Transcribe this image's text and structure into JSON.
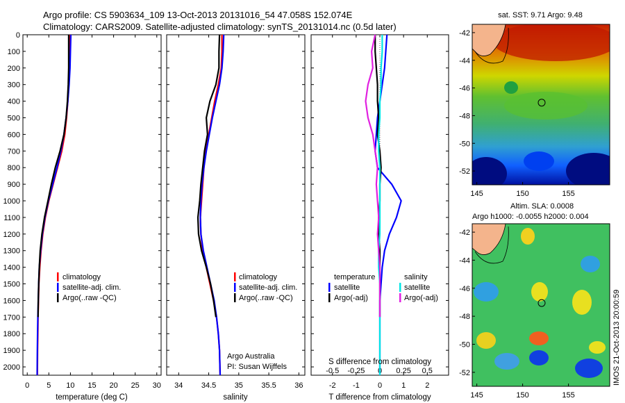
{
  "title": {
    "line1": "Argo profile: CS 5903634_109 13-Oct-2013 20131016_54 47.058S 152.074E",
    "line2": "Climatology: CARS2009. Satellite-adjusted climatology: synTS_20131014.nc (0.5d later)"
  },
  "colors": {
    "climatology": "#ff0000",
    "satellite": "#0000ff",
    "argo": "#000000",
    "salinity_sat": "#00e5e5",
    "salinity_argo": "#e020e0"
  },
  "chart_data": [
    {
      "type": "line",
      "panel": "temperature",
      "xlabel": "temperature (deg C)",
      "ylabel": "",
      "xlim": [
        -1,
        31
      ],
      "ylim": [
        0,
        2050
      ],
      "y_reversed": true,
      "xticks": [
        "0",
        "5",
        "10",
        "15",
        "20",
        "25",
        "30"
      ],
      "yticks": [
        "0",
        "100",
        "200",
        "300",
        "400",
        "500",
        "600",
        "700",
        "800",
        "900",
        "1000",
        "1100",
        "1200",
        "1300",
        "1400",
        "1500",
        "1600",
        "1700",
        "1800",
        "1900",
        "2000"
      ],
      "legend": [
        "climatology",
        "satellite-adj. clim.",
        "Argo(..raw -QC)"
      ],
      "series": [
        {
          "name": "climatology",
          "color": "#ff0000",
          "x": [
            9.8,
            9.8,
            9.7,
            9.6,
            9.4,
            9.1,
            8.7,
            8.0,
            7.0,
            6.0,
            5.0,
            4.2,
            3.6,
            3.2,
            2.9,
            2.7,
            2.6,
            2.5,
            2.45,
            2.4,
            2.35
          ],
          "y": [
            0,
            100,
            200,
            300,
            400,
            500,
            600,
            700,
            800,
            900,
            1000,
            1100,
            1200,
            1300,
            1400,
            1500,
            1600,
            1700,
            1800,
            1900,
            2050
          ]
        },
        {
          "name": "satellite-adj. clim.",
          "color": "#0000ff",
          "x": [
            10.1,
            10.0,
            9.9,
            9.7,
            9.4,
            9.0,
            8.5,
            7.8,
            6.9,
            5.9,
            4.9,
            4.1,
            3.5,
            3.1,
            2.8,
            2.65,
            2.55,
            2.45,
            2.4,
            2.35,
            2.3
          ],
          "y": [
            0,
            100,
            200,
            300,
            400,
            500,
            600,
            700,
            800,
            900,
            1000,
            1100,
            1200,
            1300,
            1400,
            1500,
            1600,
            1700,
            1800,
            1900,
            2050
          ]
        },
        {
          "name": "Argo(..raw -QC)",
          "color": "#000000",
          "x": [
            9.6,
            9.6,
            9.6,
            9.5,
            9.3,
            9.0,
            8.5,
            7.6,
            6.5,
            5.6,
            4.8,
            4.0,
            3.4,
            3.0,
            2.8,
            2.65,
            2.55,
            2.5
          ],
          "y": [
            0,
            100,
            200,
            300,
            400,
            500,
            600,
            700,
            800,
            900,
            1000,
            1100,
            1200,
            1300,
            1400,
            1500,
            1600,
            1700
          ]
        }
      ]
    },
    {
      "type": "line",
      "panel": "salinity",
      "xlabel": "salinity",
      "ylabel": "",
      "xlim": [
        33.8,
        36.1
      ],
      "ylim": [
        0,
        2050
      ],
      "y_reversed": true,
      "xticks": [
        "34",
        "34.5",
        "35",
        "35.5",
        "36"
      ],
      "legend": [
        "climatology",
        "satellite-adj. clim.",
        "Argo(..raw -QC)"
      ],
      "series": [
        {
          "name": "climatology",
          "color": "#ff0000",
          "x": [
            34.72,
            34.72,
            34.71,
            34.66,
            34.6,
            34.55,
            34.5,
            34.45,
            34.42,
            34.4,
            34.38,
            34.36,
            34.37,
            34.4,
            34.46,
            34.52,
            34.58,
            34.63,
            34.66,
            34.68,
            34.69
          ],
          "y": [
            0,
            100,
            200,
            300,
            400,
            500,
            600,
            700,
            800,
            900,
            1000,
            1100,
            1200,
            1300,
            1400,
            1500,
            1600,
            1700,
            1800,
            1900,
            2050
          ]
        },
        {
          "name": "satellite-adj. clim.",
          "color": "#0000ff",
          "x": [
            34.75,
            34.74,
            34.72,
            34.68,
            34.62,
            34.56,
            34.51,
            34.46,
            34.42,
            34.39,
            34.37,
            34.36,
            34.37,
            34.41,
            34.47,
            34.53,
            34.59,
            34.63,
            34.66,
            34.68,
            34.69
          ],
          "y": [
            0,
            100,
            200,
            300,
            400,
            500,
            600,
            700,
            800,
            900,
            1000,
            1100,
            1200,
            1300,
            1400,
            1500,
            1600,
            1700,
            1800,
            1900,
            2050
          ]
        },
        {
          "name": "Argo(..raw -QC)",
          "color": "#000000",
          "x": [
            34.68,
            34.67,
            34.67,
            34.62,
            34.52,
            34.46,
            34.48,
            34.43,
            34.4,
            34.37,
            34.35,
            34.32,
            34.33,
            34.38,
            34.46,
            34.53,
            34.58,
            34.62
          ],
          "y": [
            0,
            100,
            200,
            300,
            400,
            500,
            600,
            700,
            800,
            900,
            1000,
            1100,
            1200,
            1300,
            1400,
            1500,
            1600,
            1700
          ]
        }
      ],
      "annotation": [
        "Argo Australia",
        "PI: Susan Wijffels"
      ]
    },
    {
      "type": "line",
      "panel": "difference",
      "xlabel": "T difference from climatology",
      "xlabel_top": "S difference from climatology",
      "ylabel": "",
      "xlim": [
        -2.9,
        2.9
      ],
      "ylim": [
        0,
        2050
      ],
      "y_reversed": true,
      "xticks": [
        "-2",
        "-1",
        "0",
        "1",
        "2"
      ],
      "xticks_top": [
        "-0.5",
        "-0.25",
        "0",
        "0.25",
        "0.5"
      ],
      "legend_groups": [
        {
          "title": "temperature",
          "items": [
            "satellite",
            "Argo(-adj)"
          ]
        },
        {
          "title": "salinity",
          "items": [
            "satellite",
            "Argo(-adj)"
          ]
        }
      ],
      "series": [
        {
          "name": "temperature satellite",
          "color": "#0000ff",
          "x": [
            0.3,
            0.25,
            0.2,
            0.1,
            0.0,
            -0.1,
            -0.15,
            -0.2,
            -0.1,
            0.5,
            0.9,
            0.7,
            0.4,
            0.2,
            0.1,
            0.05,
            0.0,
            0.0,
            0.0,
            0.0,
            0.0
          ],
          "y": [
            0,
            100,
            200,
            300,
            400,
            500,
            600,
            700,
            800,
            900,
            1000,
            1100,
            1200,
            1300,
            1400,
            1500,
            1600,
            1700,
            1800,
            1900,
            2050
          ]
        },
        {
          "name": "temperature Argo(-adj)",
          "color": "#000000",
          "x": [
            -0.2,
            -0.2,
            -0.15,
            -0.1,
            -0.1,
            -0.05,
            -0.1,
            0.0,
            0.05,
            0.0,
            0.0,
            -0.05,
            -0.05,
            0.0,
            0.0,
            0.0,
            0.0,
            0.0
          ],
          "y": [
            0,
            100,
            200,
            300,
            400,
            500,
            600,
            700,
            800,
            900,
            1000,
            1100,
            1200,
            1300,
            1400,
            1500,
            1600,
            1700
          ]
        },
        {
          "name": "salinity satellite",
          "color": "#00e5e5",
          "x": [
            0.1,
            0.1,
            0.05,
            0.05,
            0.0,
            0.0,
            -0.05,
            -0.05,
            0.0,
            0.0,
            0.0,
            0.0,
            0.0,
            -0.05,
            -0.05,
            0.0,
            0.0,
            0.0,
            0.0,
            0.0,
            0.0
          ],
          "y": [
            0,
            100,
            200,
            300,
            400,
            500,
            600,
            700,
            800,
            900,
            1000,
            1100,
            1200,
            1300,
            1400,
            1500,
            1600,
            1700,
            1800,
            1900,
            2050
          ]
        },
        {
          "name": "salinity Argo(-adj)",
          "color": "#e020e0",
          "x": [
            -0.2,
            -0.35,
            -0.3,
            -0.5,
            -0.6,
            -0.5,
            -0.3,
            -0.2,
            -0.1,
            -0.15,
            -0.1,
            -0.05,
            -0.1,
            -0.05,
            0.0,
            0.0,
            0.0,
            0.0
          ],
          "y": [
            0,
            100,
            200,
            300,
            400,
            500,
            600,
            700,
            800,
            900,
            1000,
            1100,
            1200,
            1300,
            1400,
            1500,
            1600,
            1700
          ]
        }
      ]
    },
    {
      "type": "heatmap",
      "panel": "sst-map",
      "title": "sat. SST: 9.71 Argo: 9.48",
      "xticks": [
        "145",
        "150",
        "155"
      ],
      "yticks": [
        "-42",
        "-44",
        "-46",
        "-48",
        "-50",
        "-52"
      ],
      "xlim": [
        144.5,
        159.5
      ],
      "ylim": [
        -53,
        -41.4
      ],
      "marker": {
        "lon": 152.074,
        "lat": -47.058
      }
    },
    {
      "type": "heatmap",
      "panel": "sla-map",
      "title_lines": [
        "Altim. SLA: 0.0008",
        "Argo h1000: -0.0055 h2000: 0.004"
      ],
      "xticks": [
        "145",
        "150",
        "155"
      ],
      "yticks": [
        "-42",
        "-44",
        "-46",
        "-48",
        "-50",
        "-52"
      ],
      "xlim": [
        144.5,
        159.5
      ],
      "ylim": [
        -53,
        -41.4
      ],
      "marker": {
        "lon": 152.074,
        "lat": -47.058
      }
    }
  ],
  "side_stamp": "IMOS 21-Oct-2013 20:00:59"
}
